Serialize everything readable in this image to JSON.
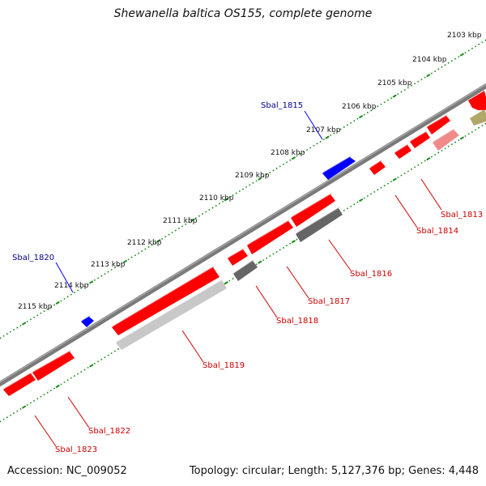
{
  "title": "Shewanella baltica OS155, complete genome",
  "accession_label": "Accession: NC_009052",
  "summary_label": "Topology: circular; Length: 5,127,376 bp; Genes: 4,448",
  "colors": {
    "backbone": "#7a7a7a",
    "tick": "#1a8a1a",
    "forward_cds": "#ff0000",
    "reverse_cds": "#ff0000",
    "pseudo_gray": "#666666",
    "light_gray": "#c8c8c8",
    "pink": "#f08a8a",
    "olive": "#b0a868",
    "blue_feature": "#0000ff",
    "forward_label": "#00008b",
    "reverse_label": "#cc0000"
  },
  "ruler": {
    "labels": [
      "2103 kbp",
      "2104 kbp",
      "2105 kbp",
      "2106 kbp",
      "2107 kbp",
      "2108 kbp",
      "2109 kbp",
      "2110 kbp",
      "2111 kbp",
      "2112 kbp",
      "2113 kbp",
      "2114 kbp",
      "2115 kbp"
    ]
  },
  "genes": {
    "labels": [
      {
        "text": "Sbal_1815",
        "strand": "forward"
      },
      {
        "text": "Sbal_1820",
        "strand": "forward"
      },
      {
        "text": "Sbal_1813",
        "strand": "reverse"
      },
      {
        "text": "Sbal_1814",
        "strand": "reverse"
      },
      {
        "text": "Sbal_1816",
        "strand": "reverse"
      },
      {
        "text": "Sbal_1817",
        "strand": "reverse"
      },
      {
        "text": "Sbal_1818",
        "strand": "reverse"
      },
      {
        "text": "Sbal_1819",
        "strand": "reverse"
      },
      {
        "text": "Sbal_1822",
        "strand": "reverse"
      },
      {
        "text": "Sbal_1823",
        "strand": "reverse"
      }
    ]
  }
}
